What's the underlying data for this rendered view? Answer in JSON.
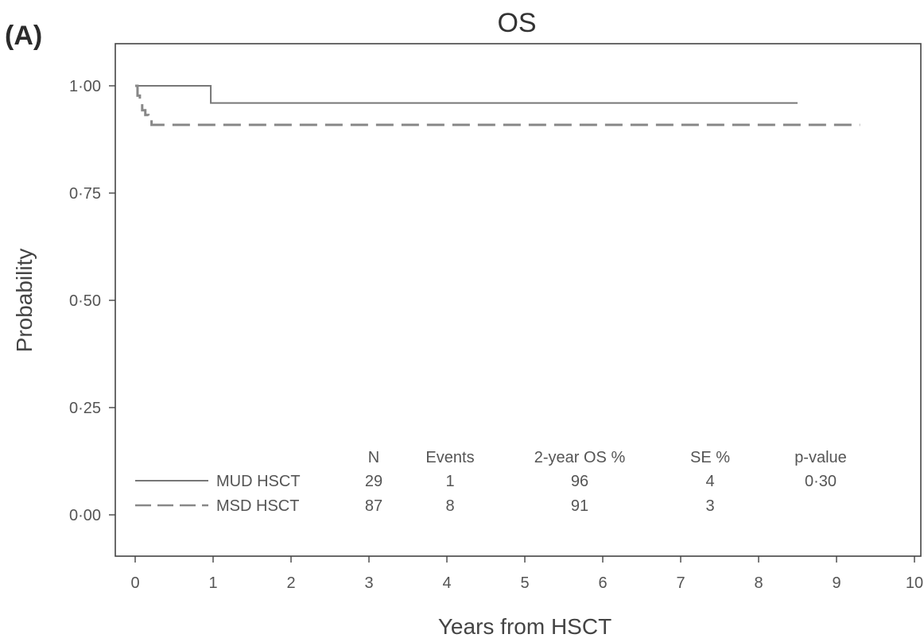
{
  "panel_label": "(A)",
  "chart_data": {
    "type": "line",
    "title": "OS",
    "xlabel": "Years from HSCT",
    "ylabel": "Probability",
    "xlim": [
      0,
      10
    ],
    "ylim": [
      0,
      1
    ],
    "x_ticks": [
      0,
      1,
      2,
      3,
      4,
      5,
      6,
      7,
      8,
      9,
      10
    ],
    "x_tick_labels": [
      "0",
      "1",
      "2",
      "3",
      "4",
      "5",
      "6",
      "7",
      "8",
      "9",
      "10"
    ],
    "y_ticks": [
      0,
      0.25,
      0.5,
      0.75,
      1.0
    ],
    "y_tick_labels": [
      "0·00",
      "0·25",
      "0·50",
      "0·75",
      "1·00"
    ],
    "grid": false,
    "legend_position": "bottom-left",
    "series": [
      {
        "name": "MUD HSCT",
        "style": "solid",
        "color": "#777777",
        "steps": [
          [
            0,
            1.0
          ],
          [
            0.97,
            0.96
          ],
          [
            8.5,
            0.96
          ]
        ]
      },
      {
        "name": "MSD HSCT",
        "style": "dashed",
        "color": "#888888",
        "steps": [
          [
            0,
            1.0
          ],
          [
            0.03,
            0.977
          ],
          [
            0.06,
            0.966
          ],
          [
            0.09,
            0.943
          ],
          [
            0.13,
            0.932
          ],
          [
            0.17,
            0.921
          ],
          [
            0.21,
            0.909
          ],
          [
            9.3,
            0.909
          ]
        ]
      }
    ],
    "table": {
      "headers": [
        "N",
        "Events",
        "2-year OS %",
        "SE %",
        "p-value"
      ],
      "rows": [
        [
          "29",
          "1",
          "96",
          "4",
          "0·30"
        ],
        [
          "87",
          "8",
          "91",
          "3",
          ""
        ]
      ]
    }
  }
}
